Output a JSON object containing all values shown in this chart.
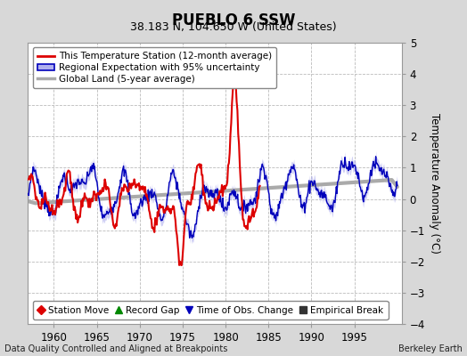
{
  "title": "PUEBLO 6 SSW",
  "subtitle": "38.183 N, 104.650 W (United States)",
  "ylabel": "Temperature Anomaly (°C)",
  "xlabel_note": "Data Quality Controlled and Aligned at Breakpoints",
  "credit": "Berkeley Earth",
  "ylim": [
    -4,
    5
  ],
  "xlim": [
    1957.0,
    2000.5
  ],
  "xticks": [
    1960,
    1965,
    1970,
    1975,
    1980,
    1985,
    1990,
    1995
  ],
  "yticks": [
    -4,
    -3,
    -2,
    -1,
    0,
    1,
    2,
    3,
    4,
    5
  ],
  "bg_color": "#d8d8d8",
  "plot_bg_color": "#ffffff",
  "grid_color": "#bbbbbb",
  "red_line_color": "#dd0000",
  "blue_line_color": "#0000bb",
  "blue_fill_color": "#b0b0ee",
  "gray_line_color": "#aaaaaa",
  "legend1_items": [
    {
      "label": "This Temperature Station (12-month average)",
      "color": "#dd0000",
      "lw": 2
    },
    {
      "label": "Regional Expectation with 95% uncertainty",
      "color": "#0000bb",
      "lw": 1.5
    },
    {
      "label": "Global Land (5-year average)",
      "color": "#aaaaaa",
      "lw": 2
    }
  ],
  "legend2_items": [
    {
      "label": "Station Move",
      "marker": "D",
      "color": "#dd0000"
    },
    {
      "label": "Record Gap",
      "marker": "^",
      "color": "#008800"
    },
    {
      "label": "Time of Obs. Change",
      "marker": "v",
      "color": "#0000bb"
    },
    {
      "label": "Empirical Break",
      "marker": "s",
      "color": "#333333"
    }
  ]
}
